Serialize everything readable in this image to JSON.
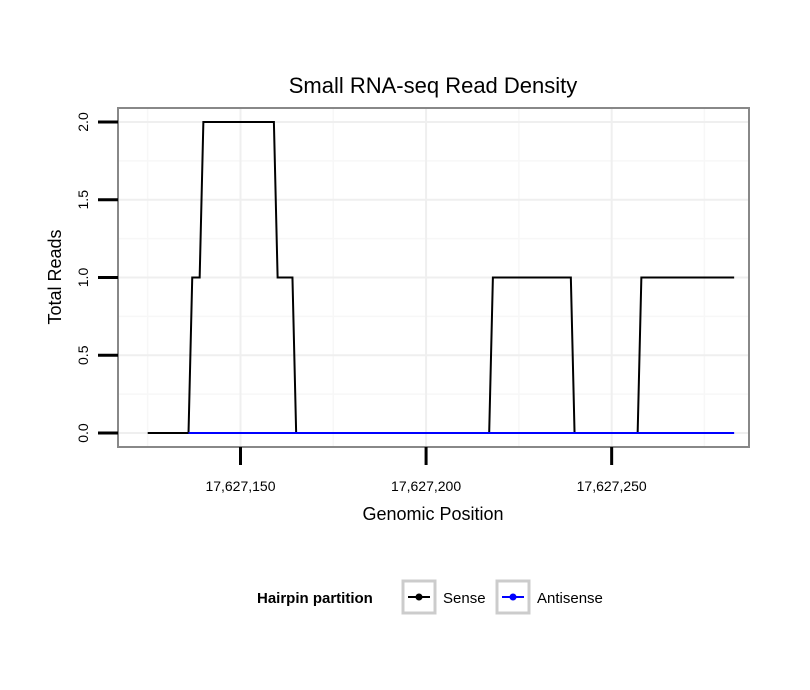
{
  "chart_data": {
    "type": "line",
    "title": "Small RNA-seq Read Density",
    "xlabel": "Genomic Position",
    "ylabel": "Total Reads",
    "xlim": [
      17627117,
      17627287
    ],
    "ylim": [
      -0.09,
      2.09
    ],
    "x_ticks": [
      17627150,
      17627200,
      17627250
    ],
    "x_tick_labels": [
      "17,627,150",
      "17,627,200",
      "17,627,250"
    ],
    "y_ticks": [
      0.0,
      0.5,
      1.0,
      1.5,
      2.0
    ],
    "y_tick_labels": [
      "0.0",
      "0.5",
      "1.0",
      "1.5",
      "2.0"
    ],
    "grid": true,
    "legend": {
      "title": "Hairpin partition",
      "position": "bottom",
      "entries": [
        "Sense",
        "Antisense"
      ]
    },
    "series": [
      {
        "name": "Sense",
        "color": "#000000",
        "x": [
          17627125,
          17627136,
          17627137,
          17627139,
          17627140,
          17627159,
          17627160,
          17627164,
          17627165,
          17627217,
          17627218,
          17627239,
          17627240,
          17627257,
          17627258,
          17627283
        ],
        "y": [
          0,
          0,
          1,
          1,
          2,
          2,
          1,
          1,
          0,
          0,
          1,
          1,
          0,
          0,
          1,
          1
        ]
      },
      {
        "name": "Antisense",
        "color": "#0000ff",
        "x": [
          17627136,
          17627283
        ],
        "y": [
          0,
          0
        ]
      }
    ]
  }
}
